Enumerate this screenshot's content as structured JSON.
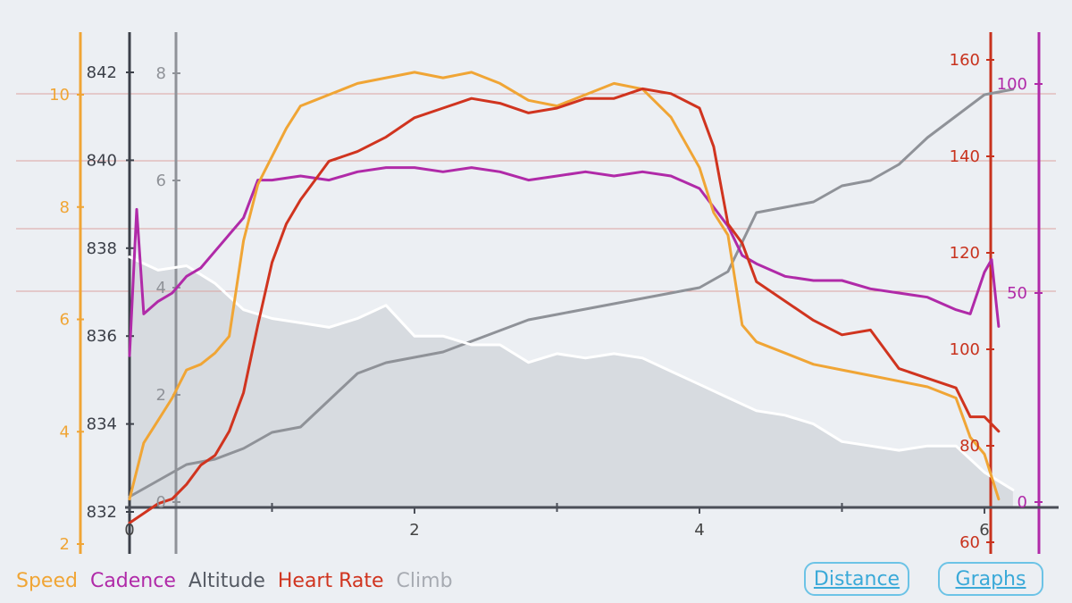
{
  "legend": [
    {
      "key": "speed",
      "label": "Speed",
      "color": "#f0a535"
    },
    {
      "key": "cadence",
      "label": "Cadence",
      "color": "#b02aa8"
    },
    {
      "key": "altitude",
      "label": "Altitude",
      "color": "#555a63"
    },
    {
      "key": "hr",
      "label": "Heart Rate",
      "color": "#d0341f"
    },
    {
      "key": "climb",
      "label": "Climb",
      "color": "#a7abb2"
    }
  ],
  "buttons": {
    "distance": "Distance",
    "graphs": "Graphs"
  },
  "chart_data": {
    "type": "line",
    "xlabel": "",
    "x_ticks": [
      0,
      2,
      4,
      6
    ],
    "xlim": [
      0,
      6.2
    ],
    "axes": {
      "speed": {
        "ticks": [
          2,
          4,
          6,
          8,
          10
        ],
        "range": [
          2,
          11
        ],
        "color": "#f0a535"
      },
      "altitude": {
        "ticks": [
          832,
          834,
          836,
          838,
          840,
          842
        ],
        "range": [
          832,
          842
        ],
        "color": "#555a63"
      },
      "climb": {
        "ticks": [
          0,
          2,
          4,
          6,
          8
        ],
        "range": [
          0,
          8
        ],
        "color": "#9a9ea5"
      },
      "heart_rate": {
        "ticks": [
          60,
          80,
          100,
          120,
          140,
          160
        ],
        "range": [
          60,
          165
        ],
        "color": "#d0341f"
      },
      "cadence": {
        "ticks": [
          0,
          50,
          100
        ],
        "range": [
          0,
          100
        ],
        "color": "#b02aa8"
      }
    },
    "series": [
      {
        "name": "Speed",
        "key": "speed",
        "axis": "speed",
        "color": "#f0a535",
        "x": [
          0,
          0.1,
          0.2,
          0.3,
          0.4,
          0.5,
          0.6,
          0.7,
          0.8,
          0.9,
          1.0,
          1.1,
          1.2,
          1.3,
          1.4,
          1.5,
          1.6,
          1.8,
          2.0,
          2.2,
          2.4,
          2.6,
          2.8,
          3.0,
          3.2,
          3.4,
          3.6,
          3.8,
          4.0,
          4.1,
          4.2,
          4.3,
          4.4,
          4.6,
          4.8,
          5.0,
          5.2,
          5.4,
          5.6,
          5.8,
          5.9,
          6.0,
          6.1
        ],
        "y": [
          2.8,
          3.8,
          4.2,
          4.6,
          5.1,
          5.2,
          5.4,
          5.7,
          7.4,
          8.4,
          8.9,
          9.4,
          9.8,
          9.9,
          10.0,
          10.1,
          10.2,
          10.3,
          10.4,
          10.3,
          10.4,
          10.2,
          9.9,
          9.8,
          10.0,
          10.2,
          10.1,
          9.6,
          8.7,
          7.9,
          7.5,
          5.9,
          5.6,
          5.4,
          5.2,
          5.1,
          5.0,
          4.9,
          4.8,
          4.6,
          3.9,
          3.6,
          2.8
        ]
      },
      {
        "name": "Cadence",
        "key": "cadence",
        "axis": "cadence",
        "color": "#b02aa8",
        "x": [
          0,
          0.05,
          0.1,
          0.2,
          0.3,
          0.4,
          0.5,
          0.6,
          0.7,
          0.8,
          0.9,
          1.0,
          1.2,
          1.4,
          1.6,
          1.8,
          2.0,
          2.2,
          2.4,
          2.6,
          2.8,
          3.0,
          3.2,
          3.4,
          3.6,
          3.8,
          4.0,
          4.2,
          4.3,
          4.4,
          4.6,
          4.8,
          5.0,
          5.2,
          5.4,
          5.6,
          5.8,
          5.9,
          6.0,
          6.05,
          6.1
        ],
        "y": [
          35,
          70,
          45,
          48,
          50,
          54,
          56,
          60,
          64,
          68,
          77,
          77,
          78,
          77,
          79,
          80,
          80,
          79,
          80,
          79,
          77,
          78,
          79,
          78,
          79,
          78,
          75,
          66,
          59,
          57,
          54,
          53,
          53,
          51,
          50,
          49,
          46,
          45,
          55,
          58,
          42
        ]
      },
      {
        "name": "Altitude",
        "key": "altitude",
        "axis": "altitude",
        "color": "#ffffff",
        "x": [
          0,
          0.2,
          0.4,
          0.6,
          0.8,
          1.0,
          1.2,
          1.4,
          1.6,
          1.8,
          2.0,
          2.2,
          2.4,
          2.6,
          2.8,
          3.0,
          3.2,
          3.4,
          3.6,
          3.8,
          4.0,
          4.2,
          4.4,
          4.6,
          4.8,
          5.0,
          5.2,
          5.4,
          5.6,
          5.8,
          6.0,
          6.2
        ],
        "y": [
          837.8,
          837.5,
          837.6,
          837.2,
          836.6,
          836.4,
          836.3,
          836.2,
          836.4,
          836.7,
          836.0,
          836.0,
          835.8,
          835.8,
          835.4,
          835.6,
          835.5,
          835.6,
          835.5,
          835.2,
          834.9,
          834.6,
          834.3,
          834.2,
          834.0,
          833.6,
          833.5,
          833.4,
          833.5,
          833.5,
          832.9,
          832.5
        ]
      },
      {
        "name": "Heart Rate",
        "key": "hr",
        "axis": "heart_rate",
        "color": "#d0341f",
        "x": [
          0,
          0.1,
          0.2,
          0.3,
          0.4,
          0.5,
          0.6,
          0.7,
          0.8,
          0.9,
          1.0,
          1.1,
          1.2,
          1.3,
          1.4,
          1.5,
          1.6,
          1.8,
          2.0,
          2.2,
          2.4,
          2.6,
          2.8,
          3.0,
          3.2,
          3.4,
          3.6,
          3.8,
          4.0,
          4.1,
          4.2,
          4.3,
          4.4,
          4.6,
          4.8,
          5.0,
          5.2,
          5.4,
          5.6,
          5.8,
          5.9,
          6.0,
          6.1
        ],
        "y": [
          64,
          66,
          68,
          69,
          72,
          76,
          78,
          83,
          91,
          105,
          118,
          126,
          131,
          135,
          139,
          140,
          141,
          144,
          148,
          150,
          152,
          151,
          149,
          150,
          152,
          152,
          154,
          153,
          150,
          142,
          126,
          122,
          114,
          110,
          106,
          103,
          104,
          96,
          94,
          92,
          86,
          86,
          83
        ]
      },
      {
        "name": "Climb",
        "key": "climb",
        "axis": "climb",
        "color": "#8f9298",
        "x": [
          0,
          0.2,
          0.4,
          0.6,
          0.8,
          1.0,
          1.2,
          1.4,
          1.6,
          1.8,
          2.0,
          2.2,
          2.4,
          2.6,
          2.8,
          3.0,
          3.2,
          3.4,
          3.6,
          3.8,
          4.0,
          4.2,
          4.4,
          4.6,
          4.8,
          5.0,
          5.2,
          5.4,
          5.6,
          5.8,
          6.0,
          6.2
        ],
        "y": [
          0.1,
          0.4,
          0.7,
          0.8,
          1.0,
          1.3,
          1.4,
          1.9,
          2.4,
          2.6,
          2.7,
          2.8,
          3.0,
          3.2,
          3.4,
          3.5,
          3.6,
          3.7,
          3.8,
          3.9,
          4.0,
          4.3,
          5.4,
          5.5,
          5.6,
          5.9,
          6.0,
          6.3,
          6.8,
          7.2,
          7.6,
          7.7
        ]
      }
    ],
    "grid": true,
    "legend_position": "bottom-left"
  }
}
